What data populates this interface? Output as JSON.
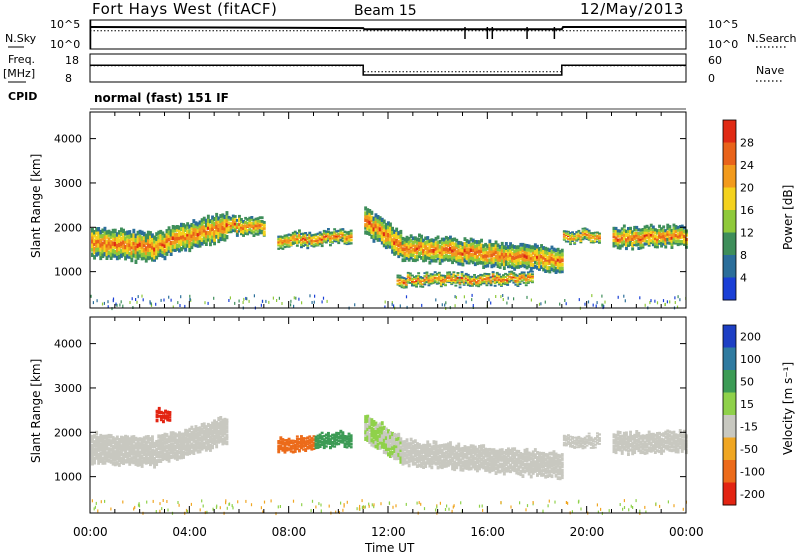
{
  "header": {
    "station": "Fort Hays West (fitACF)",
    "beam": "Beam 15",
    "date": "12/May/2013"
  },
  "status": {
    "nsky_label": "N.Sky",
    "nsearch_label": "N.Search",
    "freq_label_1": "Freq.",
    "freq_label_2": "[MHz]",
    "nave_label": "Nave",
    "cpid_label": "CPID",
    "cpid_value": "normal (fast) 151 IF",
    "noise_ticks": [
      "10^5",
      "10^0"
    ],
    "freq_ticks": [
      "18",
      "8"
    ],
    "nave_ticks": [
      "60",
      "0"
    ]
  },
  "axes": {
    "time_ticks": [
      "00:00",
      "04:00",
      "08:00",
      "12:00",
      "16:00",
      "20:00",
      "00:00"
    ],
    "range_ticks": [
      "1000",
      "2000",
      "3000",
      "4000"
    ],
    "xlabel": "Time UT",
    "ylabel": "Slant Range [km]"
  },
  "colorbars": {
    "power": {
      "label": "Power [dB]",
      "ticks": [
        "4",
        "8",
        "12",
        "16",
        "20",
        "24",
        "28"
      ],
      "colors": [
        "#1a3fd6",
        "#2b6e9a",
        "#3e8e5a",
        "#8fc93a",
        "#f4d21d",
        "#f29a1c",
        "#e9631a",
        "#e02a14"
      ]
    },
    "velocity": {
      "label": "Velocity [m s⁻¹]",
      "ticks": [
        "200",
        "100",
        "50",
        "15",
        "-15",
        "-50",
        "-100",
        "-200"
      ],
      "colors": [
        "#1d3fc4",
        "#2f7ba0",
        "#3c9b55",
        "#8fd14a",
        "#c8c8c0",
        "#f0a622",
        "#ec6b1a",
        "#e32412"
      ]
    }
  },
  "chart_data": [
    {
      "type": "line",
      "title": "Fort Hays West (fitACF) Beam 15 12/May/2013",
      "series": [
        {
          "name": "N.Sky",
          "x": [
            0,
            0.05,
            11,
            11.05,
            19,
            19.05,
            24
          ],
          "values": [
            3.8,
            3.8,
            3.6,
            3.4,
            3.4,
            3.8,
            3.8
          ]
        },
        {
          "name": "N.Search",
          "x": [
            0,
            24
          ],
          "values": [
            3.5,
            3.5
          ]
        }
      ],
      "xlim": [
        0,
        24
      ],
      "ylabel": "N.Sky"
    },
    {
      "type": "line",
      "series": [
        {
          "name": "Freq.",
          "x": [
            0,
            11,
            11,
            19,
            19,
            24
          ],
          "values": [
            14,
            14,
            10.5,
            10.5,
            14,
            14
          ]
        },
        {
          "name": "Nave",
          "x": [
            0,
            11,
            11,
            19,
            19,
            24
          ],
          "values": [
            35,
            35,
            22,
            22,
            35,
            35
          ]
        }
      ],
      "xlim": [
        0,
        24
      ],
      "ylabel": "Freq. [MHz]"
    },
    {
      "type": "heatmap",
      "xlabel": "Time UT",
      "ylabel": "Slant Range [km]",
      "xlim": [
        0,
        24
      ],
      "ylim": [
        180,
        4600
      ],
      "colorbar_label": "Power [dB]",
      "colorbar_ticks": [
        4,
        8,
        12,
        16,
        20,
        24,
        28
      ],
      "bands": [
        {
          "t0": 0.0,
          "t1": 2.5,
          "r0": 1650,
          "r1": 1550,
          "w": 650
        },
        {
          "t0": 2.5,
          "t1": 5.5,
          "r0": 1550,
          "r1": 2050,
          "w": 600
        },
        {
          "t0": 5.5,
          "t1": 7.0,
          "r0": 2050,
          "r1": 2000,
          "w": 380
        },
        {
          "t0": 7.5,
          "t1": 10.5,
          "r0": 1700,
          "r1": 1800,
          "w": 300
        },
        {
          "t0": 11.0,
          "t1": 12.5,
          "r0": 2150,
          "r1": 1600,
          "w": 600
        },
        {
          "t0": 12.5,
          "t1": 19.0,
          "r0": 1550,
          "r1": 1250,
          "w": 550
        },
        {
          "t0": 12.3,
          "t1": 17.8,
          "r0": 800,
          "r1": 850,
          "w": 250
        },
        {
          "t0": 19.0,
          "t1": 20.5,
          "r0": 1800,
          "r1": 1800,
          "w": 250
        },
        {
          "t0": 21.0,
          "t1": 24.0,
          "r0": 1750,
          "r1": 1800,
          "w": 450
        }
      ]
    },
    {
      "type": "heatmap",
      "xlabel": "Time UT",
      "ylabel": "Slant Range [km]",
      "xlim": [
        0,
        24
      ],
      "ylim": [
        180,
        4600
      ],
      "colorbar_label": "Velocity [m s⁻¹]",
      "colorbar_ticks": [
        200,
        100,
        50,
        15,
        -15,
        -50,
        -100,
        -200
      ],
      "bands": [
        {
          "t0": 0.0,
          "t1": 2.5,
          "r0": 1650,
          "r1": 1550,
          "w": 650,
          "v": 0
        },
        {
          "t0": 2.5,
          "t1": 5.5,
          "r0": 1550,
          "r1": 2050,
          "w": 600,
          "v": 0
        },
        {
          "t0": 2.6,
          "t1": 3.2,
          "r0": 2400,
          "r1": 2400,
          "w": 250,
          "v": -250
        },
        {
          "t0": 7.5,
          "t1": 9.0,
          "r0": 1700,
          "r1": 1750,
          "w": 300,
          "v": -80
        },
        {
          "t0": 9.0,
          "t1": 10.5,
          "r0": 1800,
          "r1": 1850,
          "w": 300,
          "v": 50
        },
        {
          "t0": 11.0,
          "t1": 12.5,
          "r0": 2150,
          "r1": 1600,
          "w": 600,
          "v": 15
        },
        {
          "t0": 12.5,
          "t1": 19.0,
          "r0": 1550,
          "r1": 1250,
          "w": 550,
          "v": 0
        },
        {
          "t0": 19.0,
          "t1": 20.5,
          "r0": 1800,
          "r1": 1800,
          "w": 250,
          "v": 0
        },
        {
          "t0": 21.0,
          "t1": 24.0,
          "r0": 1750,
          "r1": 1800,
          "w": 450,
          "v": 0
        }
      ]
    }
  ]
}
